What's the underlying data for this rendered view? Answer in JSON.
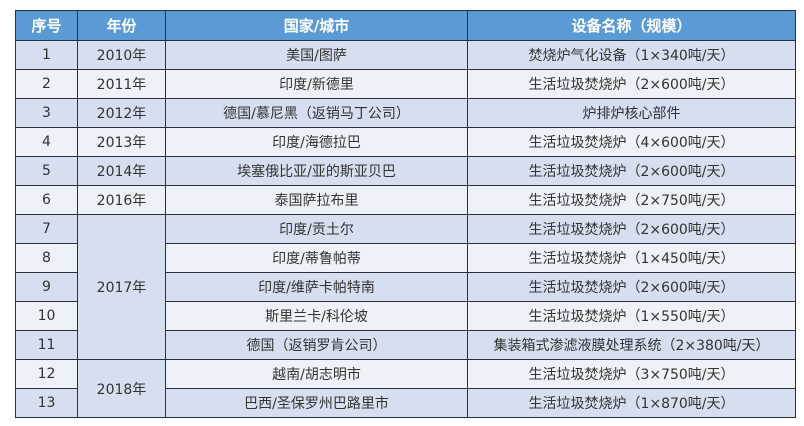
{
  "table": {
    "headers": [
      "序号",
      "年份",
      "国家/城市",
      "设备名称（规模）"
    ],
    "rows": [
      {
        "no": "1",
        "year": "2010年",
        "location": "美国/图萨",
        "equipment": "焚烧炉气化设备（1×340吨/天）"
      },
      {
        "no": "2",
        "year": "2011年",
        "location": "印度/新德里",
        "equipment": "生活垃圾焚烧炉（2×600吨/天）"
      },
      {
        "no": "3",
        "year": "2012年",
        "location": "德国/慕尼黑（返销马丁公司）",
        "equipment": "炉排炉核心部件"
      },
      {
        "no": "4",
        "year": "2013年",
        "location": "印度/海德拉巴",
        "equipment": "生活垃圾焚烧炉（4×600吨/天）"
      },
      {
        "no": "5",
        "year": "2014年",
        "location": "埃塞俄比亚/亚的斯亚贝巴",
        "equipment": "生活垃圾焚烧炉（2×600吨/天）"
      },
      {
        "no": "6",
        "year": "2016年",
        "location": "泰国萨拉布里",
        "equipment": "生活垃圾焚烧炉（2×750吨/天）"
      },
      {
        "no": "7",
        "year": "2017年",
        "year_rowspan": 5,
        "location": "印度/贡土尔",
        "equipment": "生活垃圾焚烧炉（2×600吨/天）"
      },
      {
        "no": "8",
        "location": "印度/蒂鲁帕蒂",
        "equipment": "生活垃圾焚烧炉（1×450吨/天）"
      },
      {
        "no": "9",
        "location": "印度/维萨卡帕特南",
        "equipment": "生活垃圾焚烧炉（2×600吨/天）"
      },
      {
        "no": "10",
        "location": "斯里兰卡/科伦坡",
        "equipment": "生活垃圾焚烧炉（1×550吨/天）"
      },
      {
        "no": "11",
        "location": "德国（返销罗肯公司）",
        "equipment": "集装箱式渗滤液膜处理系统（2×380吨/天）"
      },
      {
        "no": "12",
        "year": "2018年",
        "year_rowspan": 2,
        "location": "越南/胡志明市",
        "equipment": "生活垃圾焚烧炉（3×750吨/天）"
      },
      {
        "no": "13",
        "location": "巴西/圣保罗州巴路里市",
        "equipment": "生活垃圾焚烧炉（1×870吨/天）"
      }
    ]
  },
  "colors": {
    "header": "#5b9bd5",
    "row_odd": "#d5dff0",
    "row_even": "#edf1f8",
    "border": "#2b2f36"
  }
}
